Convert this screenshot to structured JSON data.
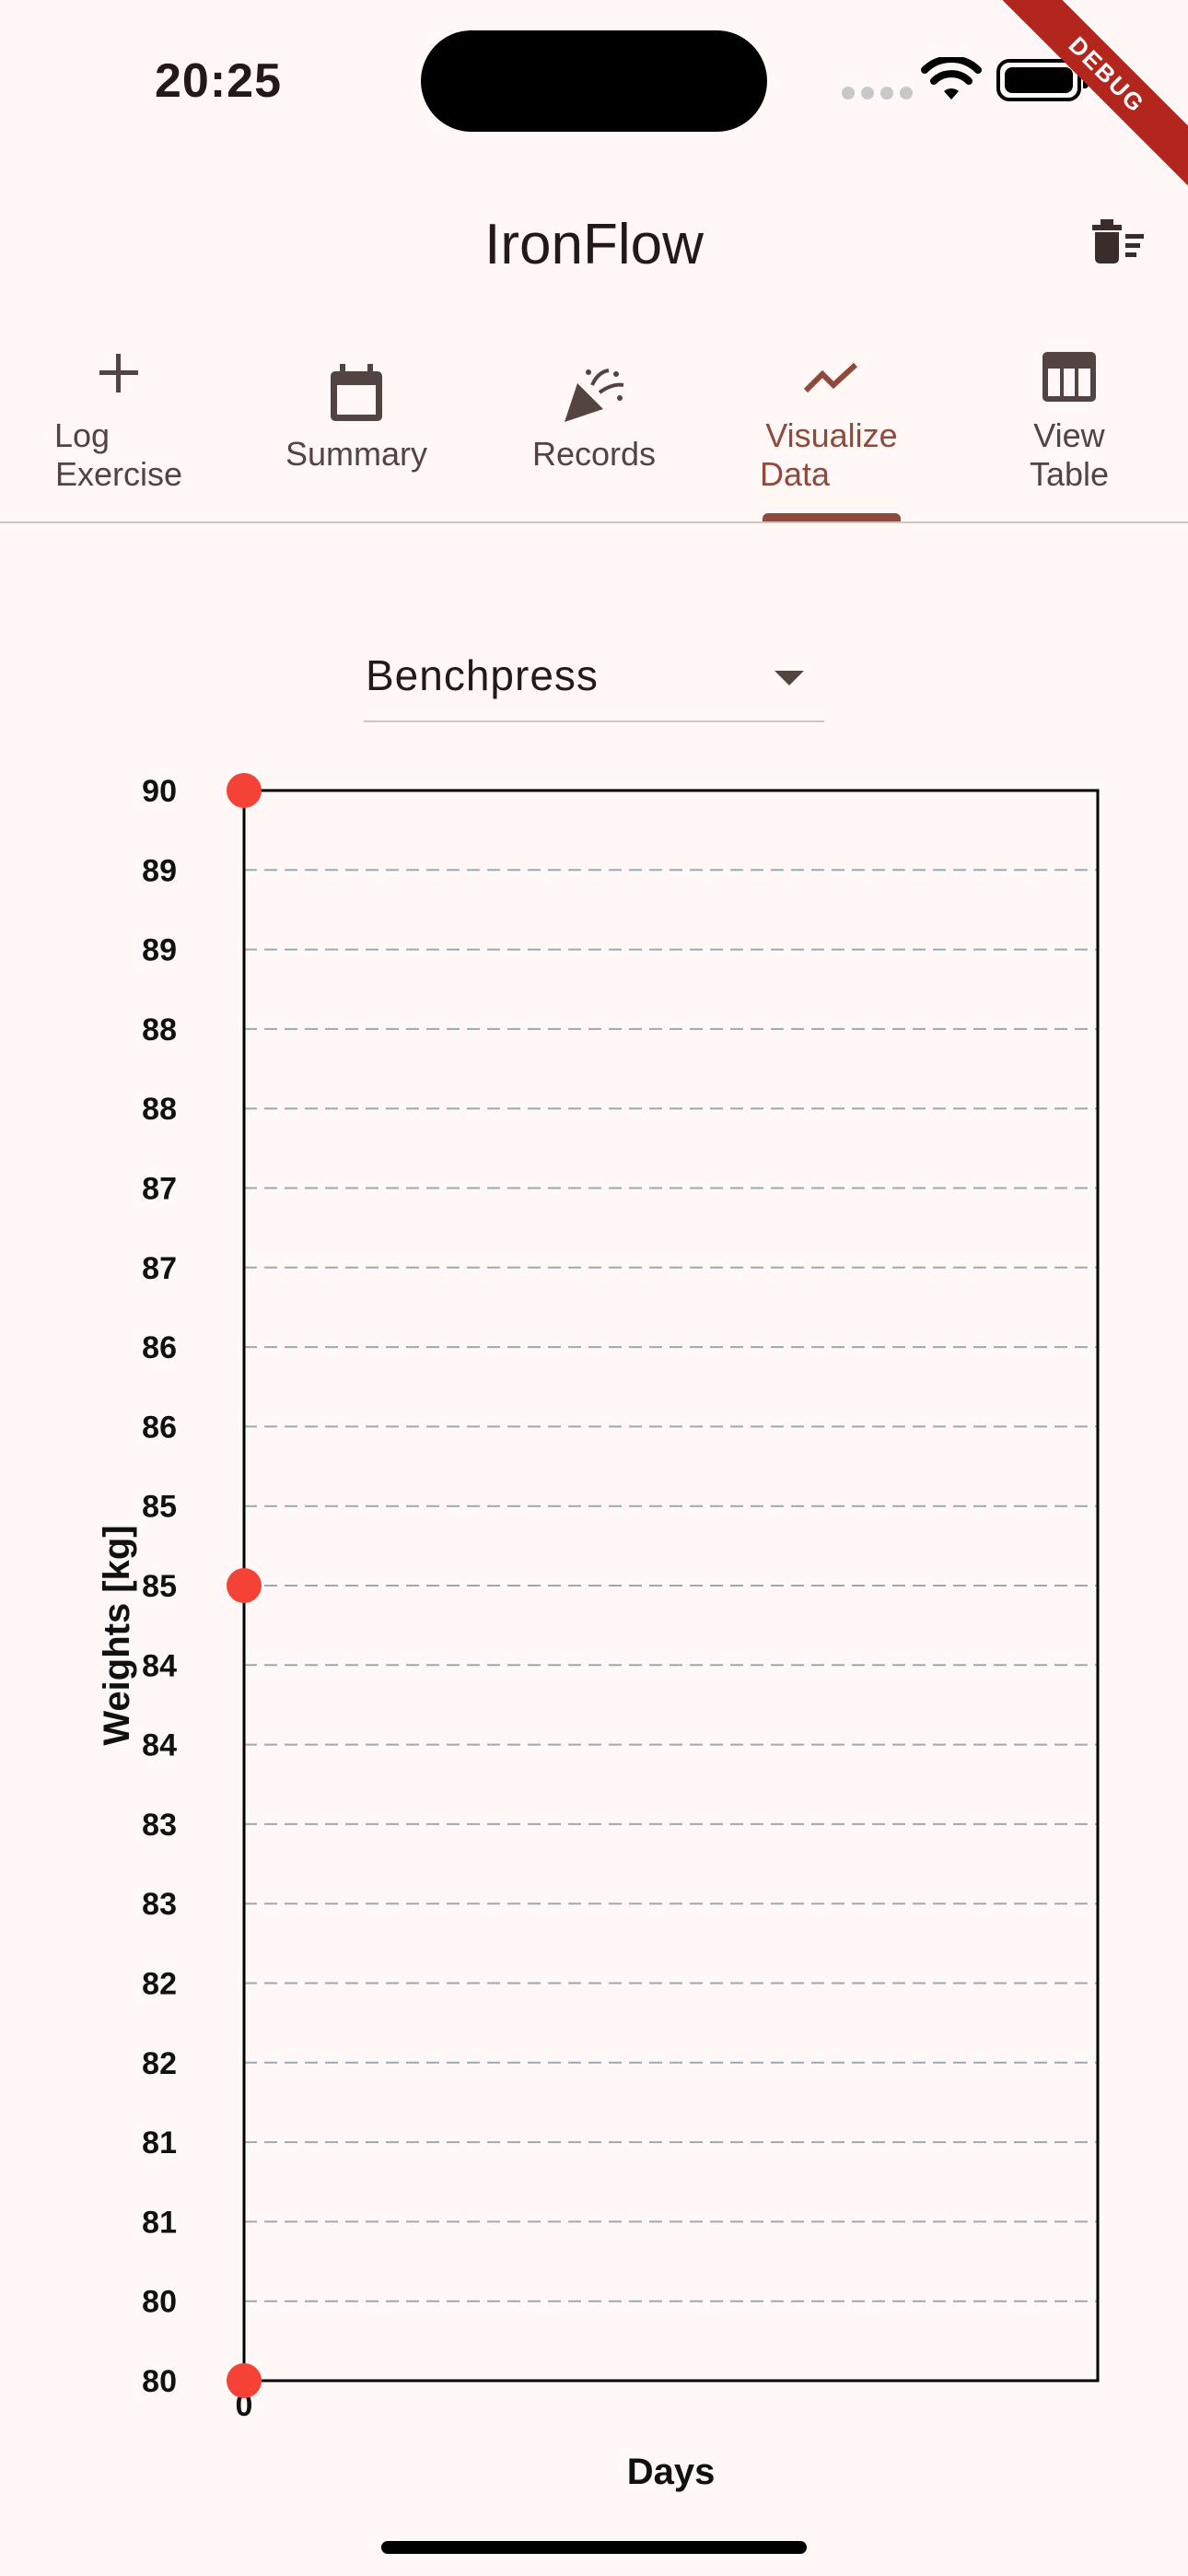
{
  "status_bar": {
    "time": "20:25",
    "debug_banner": "DEBUG"
  },
  "app_bar": {
    "title": "IronFlow",
    "action_icon": "delete-sweep-icon"
  },
  "tabs": [
    {
      "line1": "Log",
      "line2": "Exercise",
      "icon": "plus-icon"
    },
    {
      "line1": "Summary",
      "line2": "",
      "icon": "calendar-icon"
    },
    {
      "line1": "Records",
      "line2": "",
      "icon": "celebration-icon"
    },
    {
      "line1": "Visualize",
      "line2": "Data",
      "icon": "trending-icon",
      "active": true
    },
    {
      "line1": "View",
      "line2": "Table",
      "icon": "table-icon"
    }
  ],
  "exercise_select": {
    "value": "Benchpress"
  },
  "chart_data": {
    "type": "scatter",
    "xlabel": "Days",
    "ylabel": "Weights [kg]",
    "ylim": [
      80,
      90
    ],
    "xlim": [
      0,
      1
    ],
    "x_ticks": [
      "0"
    ],
    "y_ticks": [
      "90",
      "89",
      "89",
      "88",
      "88",
      "87",
      "87",
      "86",
      "86",
      "85",
      "85",
      "84",
      "84",
      "83",
      "83",
      "82",
      "82",
      "81",
      "81",
      "80",
      "80"
    ],
    "grid": "horizontal dashed",
    "points": [
      {
        "x": 0,
        "y": 90
      },
      {
        "x": 0,
        "y": 85
      },
      {
        "x": 0,
        "y": 80
      }
    ],
    "colors": {
      "point": "#f44336",
      "grid": "#9aaab2",
      "frame": "#000000"
    }
  }
}
